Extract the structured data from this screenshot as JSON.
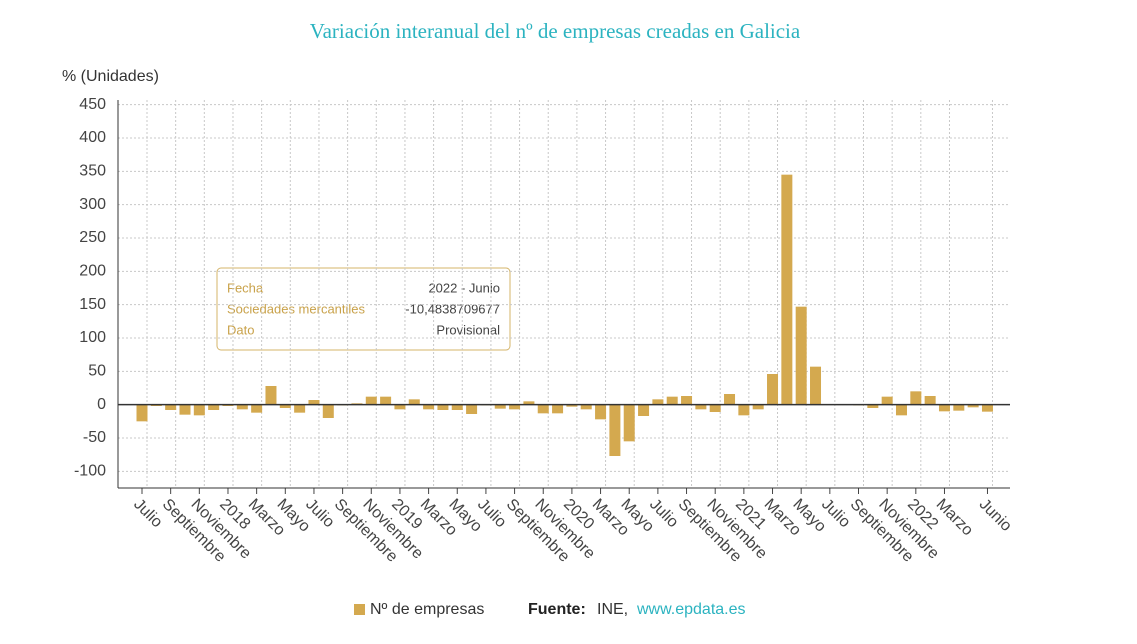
{
  "chart_data": {
    "type": "bar",
    "title": "Variación interanual del nº de empresas creadas en Galicia",
    "y_axis_label": "% (Unidades)",
    "categories": [
      "Julio",
      null,
      "Septiembre",
      null,
      "Noviembre",
      null,
      "2018",
      null,
      "Marzo",
      null,
      "Mayo",
      null,
      "Julio",
      null,
      "Septiembre",
      null,
      "Noviembre",
      null,
      "2019",
      null,
      "Marzo",
      null,
      "Mayo",
      null,
      "Julio",
      null,
      "Septiembre",
      null,
      "Noviembre",
      null,
      "2020",
      null,
      "Marzo",
      null,
      "Mayo",
      null,
      "Julio",
      null,
      "Septiembre",
      null,
      "Noviembre",
      null,
      "2021",
      null,
      "Marzo",
      null,
      "Mayo",
      null,
      "Julio",
      null,
      "Septiembre",
      null,
      "Noviembre",
      null,
      "2022",
      null,
      "Marzo",
      null,
      null,
      "Junio"
    ],
    "series": [
      {
        "name": "Nº de empresas",
        "color": "#d4a94f",
        "values": [
          -25,
          -2,
          -8,
          -15,
          -16,
          -8,
          -2,
          -7,
          -12,
          28,
          -5,
          -12,
          7,
          -20,
          -1,
          2,
          12,
          12,
          -7,
          8,
          -7,
          -8,
          -8,
          -14,
          -1,
          -6,
          -7,
          5,
          -13,
          -13,
          -3,
          -7,
          -22,
          -77,
          -55,
          -17,
          8,
          12,
          13,
          -7,
          -11,
          16,
          -16,
          -7,
          46,
          345,
          147,
          57,
          1,
          0,
          -1,
          -5,
          12,
          -16,
          20,
          13,
          -10,
          -9,
          -4,
          -10.4838709677
        ]
      }
    ],
    "ylim": [
      -125,
      457
    ],
    "yticks": [
      -100,
      -50,
      0,
      50,
      100,
      150,
      200,
      250,
      300,
      350,
      400,
      450
    ],
    "grid": true,
    "tooltip": {
      "rows": [
        [
          "Fecha",
          "2022 - Junio"
        ],
        [
          "Sociedades mercantiles",
          "-10,4838709677"
        ],
        [
          "Dato",
          "Provisional"
        ]
      ]
    },
    "source": {
      "label": "Fuente:",
      "text": "INE, ",
      "link": "www.epdata.es"
    }
  }
}
